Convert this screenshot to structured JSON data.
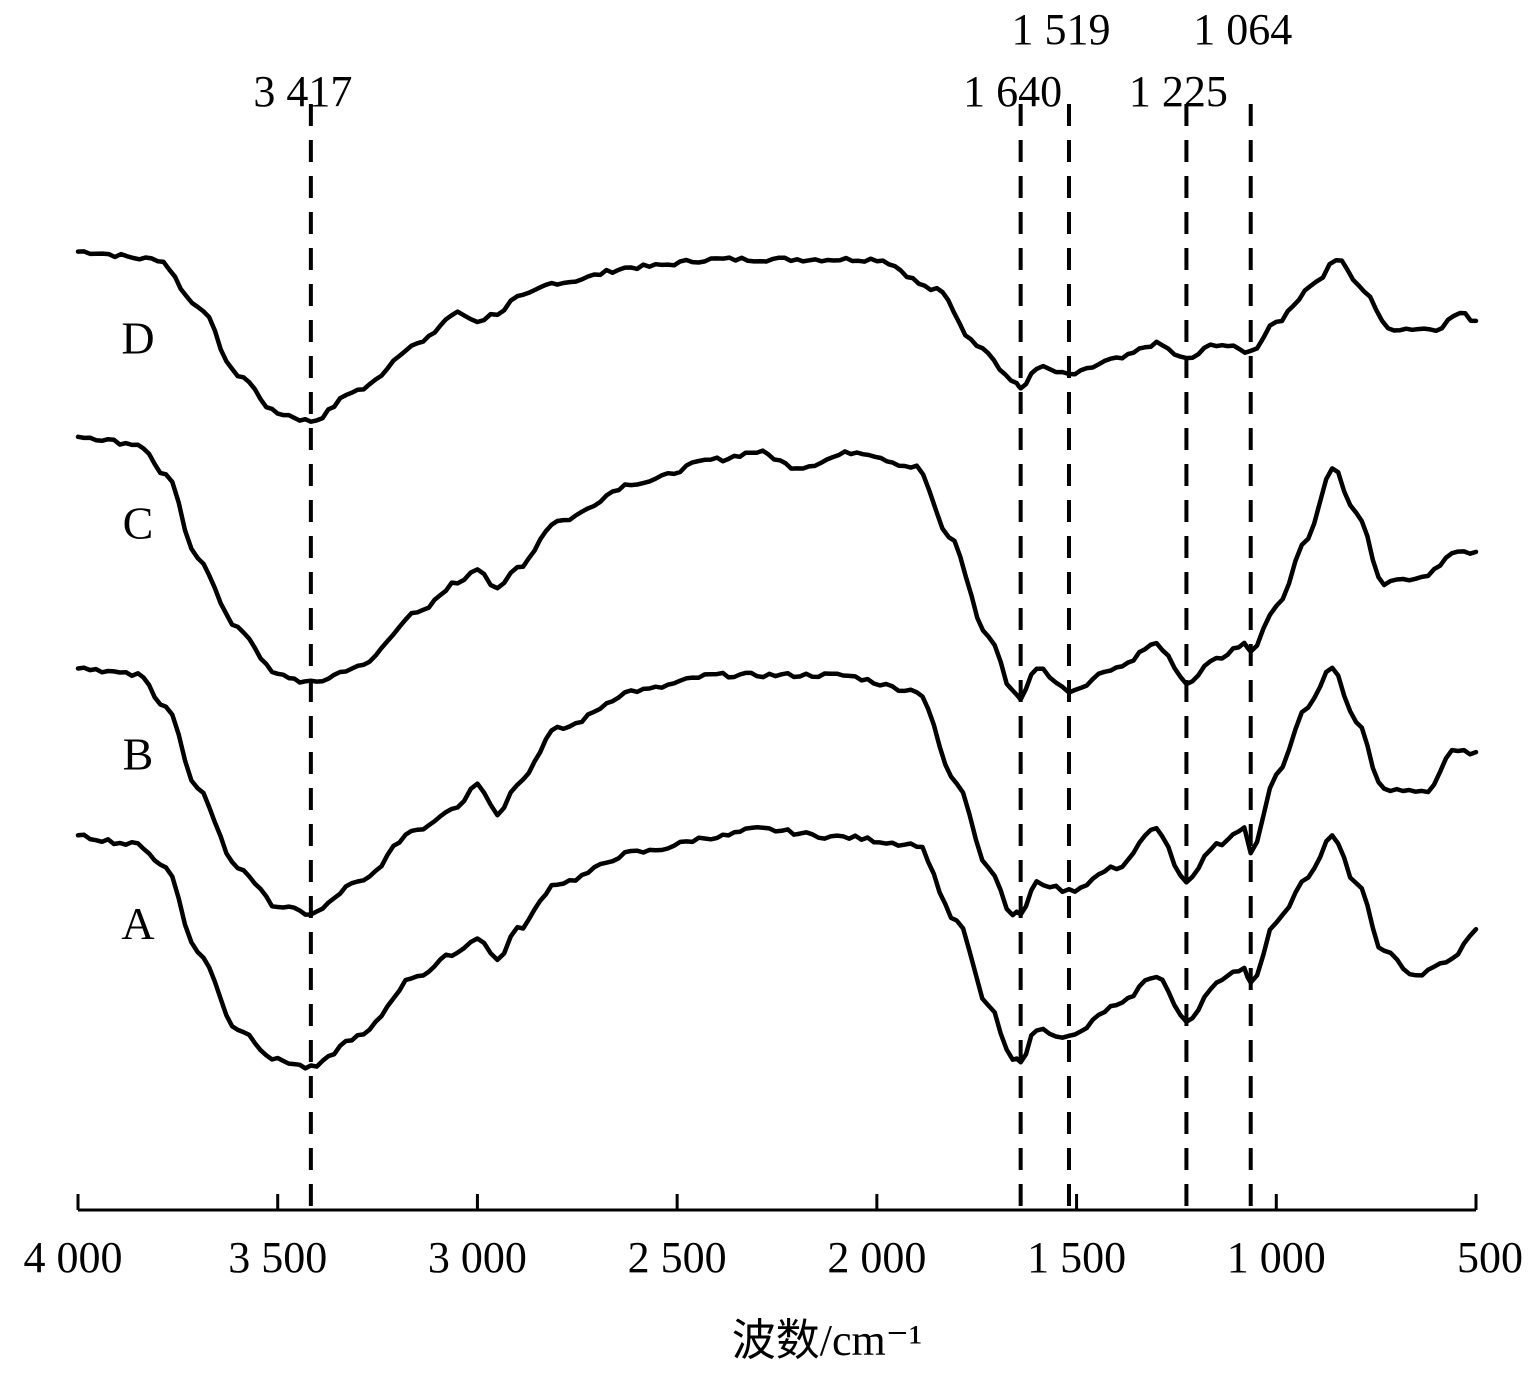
{
  "chart_data": {
    "type": "line",
    "xlabel": "波数/cm⁻¹",
    "ylabel": "",
    "xlim": [
      4000,
      500
    ],
    "x_reversed": true,
    "x_ticks": [
      {
        "value": 4000,
        "label": "4 000"
      },
      {
        "value": 3500,
        "label": "3 500"
      },
      {
        "value": 3000,
        "label": "3 000"
      },
      {
        "value": 2500,
        "label": "2 500"
      },
      {
        "value": 2000,
        "label": "2 000"
      },
      {
        "value": 1500,
        "label": "1 500"
      },
      {
        "value": 1000,
        "label": "1 000"
      },
      {
        "value": 500,
        "label": "500"
      }
    ],
    "y_ticks_shown": false,
    "peak_markers": [
      {
        "wavenumber": 3417,
        "label": "3 417",
        "row": "low"
      },
      {
        "wavenumber": 1640,
        "label": "1 640",
        "row": "low"
      },
      {
        "wavenumber": 1519,
        "label": "1 519",
        "row": "high"
      },
      {
        "wavenumber": 1225,
        "label": "1 225",
        "row": "low"
      },
      {
        "wavenumber": 1064,
        "label": "1 064",
        "row": "high"
      }
    ],
    "series": [
      {
        "name": "D",
        "points": [
          [
            4000,
            0.92
          ],
          [
            3800,
            0.91
          ],
          [
            3700,
            0.85
          ],
          [
            3600,
            0.76
          ],
          [
            3500,
            0.71
          ],
          [
            3417,
            0.7
          ],
          [
            3300,
            0.74
          ],
          [
            3150,
            0.8
          ],
          [
            3050,
            0.84
          ],
          [
            3000,
            0.83
          ],
          [
            2950,
            0.84
          ],
          [
            2900,
            0.86
          ],
          [
            2800,
            0.88
          ],
          [
            2600,
            0.9
          ],
          [
            2400,
            0.91
          ],
          [
            2200,
            0.91
          ],
          [
            2000,
            0.91
          ],
          [
            1850,
            0.87
          ],
          [
            1750,
            0.8
          ],
          [
            1650,
            0.75
          ],
          [
            1640,
            0.74
          ],
          [
            1600,
            0.77
          ],
          [
            1519,
            0.76
          ],
          [
            1400,
            0.78
          ],
          [
            1300,
            0.8
          ],
          [
            1225,
            0.78
          ],
          [
            1150,
            0.8
          ],
          [
            1064,
            0.79
          ],
          [
            1000,
            0.83
          ],
          [
            900,
            0.88
          ],
          [
            850,
            0.91
          ],
          [
            780,
            0.87
          ],
          [
            720,
            0.82
          ],
          [
            600,
            0.82
          ],
          [
            540,
            0.84
          ],
          [
            500,
            0.83
          ]
        ]
      },
      {
        "name": "C",
        "points": [
          [
            4000,
            0.68
          ],
          [
            3850,
            0.67
          ],
          [
            3780,
            0.63
          ],
          [
            3700,
            0.52
          ],
          [
            3600,
            0.43
          ],
          [
            3500,
            0.37
          ],
          [
            3417,
            0.36
          ],
          [
            3300,
            0.38
          ],
          [
            3150,
            0.45
          ],
          [
            3050,
            0.49
          ],
          [
            3000,
            0.51
          ],
          [
            2950,
            0.48
          ],
          [
            2900,
            0.51
          ],
          [
            2800,
            0.57
          ],
          [
            2600,
            0.62
          ],
          [
            2400,
            0.65
          ],
          [
            2300,
            0.66
          ],
          [
            2200,
            0.64
          ],
          [
            2050,
            0.66
          ],
          [
            1900,
            0.64
          ],
          [
            1820,
            0.55
          ],
          [
            1720,
            0.42
          ],
          [
            1660,
            0.35
          ],
          [
            1640,
            0.34
          ],
          [
            1600,
            0.38
          ],
          [
            1519,
            0.35
          ],
          [
            1400,
            0.38
          ],
          [
            1300,
            0.41
          ],
          [
            1225,
            0.36
          ],
          [
            1150,
            0.39
          ],
          [
            1080,
            0.41
          ],
          [
            1064,
            0.4
          ],
          [
            1000,
            0.46
          ],
          [
            920,
            0.55
          ],
          [
            860,
            0.64
          ],
          [
            800,
            0.58
          ],
          [
            730,
            0.49
          ],
          [
            620,
            0.5
          ],
          [
            560,
            0.53
          ],
          [
            500,
            0.53
          ]
        ]
      },
      {
        "name": "B",
        "points": [
          [
            4000,
            0.38
          ],
          [
            3850,
            0.37
          ],
          [
            3780,
            0.33
          ],
          [
            3700,
            0.22
          ],
          [
            3600,
            0.12
          ],
          [
            3500,
            0.07
          ],
          [
            3417,
            0.06
          ],
          [
            3300,
            0.1
          ],
          [
            3150,
            0.17
          ],
          [
            3050,
            0.2
          ],
          [
            3000,
            0.23
          ],
          [
            2950,
            0.19
          ],
          [
            2900,
            0.23
          ],
          [
            2800,
            0.3
          ],
          [
            2600,
            0.35
          ],
          [
            2400,
            0.37
          ],
          [
            2300,
            0.37
          ],
          [
            2100,
            0.37
          ],
          [
            1900,
            0.35
          ],
          [
            1800,
            0.23
          ],
          [
            1720,
            0.12
          ],
          [
            1660,
            0.06
          ],
          [
            1640,
            0.06
          ],
          [
            1600,
            0.1
          ],
          [
            1519,
            0.09
          ],
          [
            1400,
            0.12
          ],
          [
            1300,
            0.17
          ],
          [
            1225,
            0.1
          ],
          [
            1150,
            0.15
          ],
          [
            1080,
            0.17
          ],
          [
            1064,
            0.14
          ],
          [
            1000,
            0.24
          ],
          [
            920,
            0.33
          ],
          [
            860,
            0.38
          ],
          [
            800,
            0.31
          ],
          [
            730,
            0.22
          ],
          [
            620,
            0.22
          ],
          [
            560,
            0.27
          ],
          [
            500,
            0.27
          ]
        ]
      },
      {
        "name": "A",
        "points": [
          [
            4000,
            0.16
          ],
          [
            3850,
            0.15
          ],
          [
            3780,
            0.12
          ],
          [
            3700,
            0.01
          ],
          [
            3600,
            -0.09
          ],
          [
            3500,
            -0.13
          ],
          [
            3417,
            -0.14
          ],
          [
            3300,
            -0.1
          ],
          [
            3150,
            -0.02
          ],
          [
            3050,
            0.01
          ],
          [
            3000,
            0.03
          ],
          [
            2950,
            0.0
          ],
          [
            2900,
            0.04
          ],
          [
            2800,
            0.1
          ],
          [
            2600,
            0.14
          ],
          [
            2400,
            0.16
          ],
          [
            2300,
            0.17
          ],
          [
            2100,
            0.16
          ],
          [
            1900,
            0.15
          ],
          [
            1800,
            0.05
          ],
          [
            1720,
            -0.06
          ],
          [
            1660,
            -0.13
          ],
          [
            1640,
            -0.13
          ],
          [
            1600,
            -0.09
          ],
          [
            1519,
            -0.1
          ],
          [
            1400,
            -0.06
          ],
          [
            1300,
            -0.02
          ],
          [
            1225,
            -0.08
          ],
          [
            1150,
            -0.03
          ],
          [
            1080,
            -0.01
          ],
          [
            1064,
            -0.03
          ],
          [
            1000,
            0.05
          ],
          [
            920,
            0.11
          ],
          [
            860,
            0.16
          ],
          [
            800,
            0.1
          ],
          [
            730,
            0.01
          ],
          [
            650,
            -0.02
          ],
          [
            560,
            0.0
          ],
          [
            500,
            0.04
          ]
        ]
      }
    ]
  }
}
